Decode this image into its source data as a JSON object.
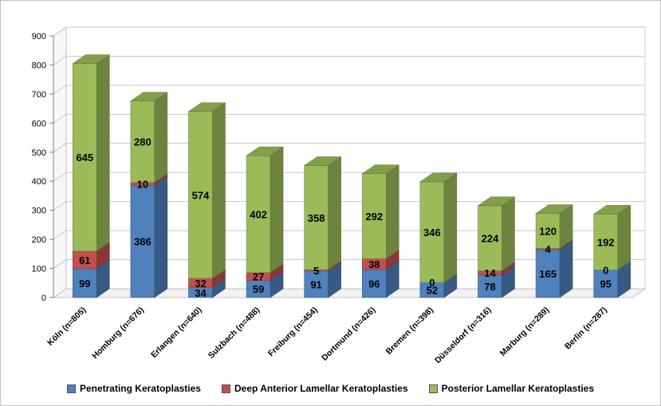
{
  "chart_data": {
    "type": "bar",
    "stacked": true,
    "three_d": true,
    "categories": [
      "Köln (n=805)",
      "Homburg (n=676)",
      "Erlangen (n=640)",
      "Sulzbach (n=488)",
      "Freiburg (n=454)",
      "Dortmund (n=426)",
      "Bremen (n=398)",
      "Düsseldorf (n=316)",
      "Marburg (n=289)",
      "Berlin (n=287)"
    ],
    "series": [
      {
        "name": "Penetrating Keratoplasties",
        "color": "#4f81bd",
        "values": [
          99,
          386,
          34,
          59,
          91,
          96,
          52,
          78,
          165,
          95
        ],
        "labels": [
          "99",
          "386",
          "34",
          "59",
          "91",
          "96",
          "52",
          "78",
          "165",
          "95"
        ]
      },
      {
        "name": "Deep Anterior Lamellar Keratoplasties",
        "color": "#c0504d",
        "values": [
          61,
          10,
          32,
          27,
          5,
          38,
          0,
          14,
          4,
          0
        ],
        "labels": [
          "61",
          "10",
          "32",
          "27",
          "5",
          "38",
          "0",
          "14",
          "4",
          "0"
        ]
      },
      {
        "name": "Posterior Lamellar Keratoplasties",
        "color": "#9bbb59",
        "values": [
          645,
          280,
          574,
          402,
          358,
          292,
          346,
          224,
          120,
          192
        ],
        "labels": [
          "645",
          "280",
          "574",
          "402",
          "358",
          "292",
          "346",
          "224",
          "120",
          "192"
        ]
      }
    ],
    "yticks": [
      "0",
      "100",
      "200",
      "300",
      "400",
      "500",
      "600",
      "700",
      "800",
      "900"
    ],
    "ylim": [
      0,
      900
    ],
    "grid": true,
    "legend": "bottom"
  }
}
